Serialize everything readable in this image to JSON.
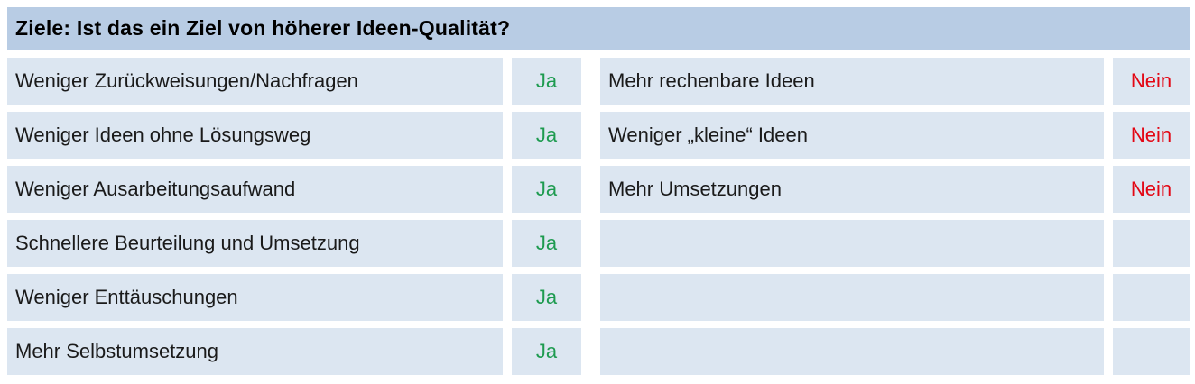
{
  "header": {
    "title": "Ziele: Ist das ein Ziel von höherer Ideen-Qualität?"
  },
  "table": {
    "left_rows": [
      {
        "label": "Weniger Zurückweisungen/Nachfragen",
        "answer": "Ja"
      },
      {
        "label": "Weniger Ideen ohne Lösungsweg",
        "answer": "Ja"
      },
      {
        "label": "Weniger Ausarbeitungsaufwand",
        "answer": "Ja"
      },
      {
        "label": "Schnellere Beurteilung und Umsetzung",
        "answer": "Ja"
      },
      {
        "label": "Weniger Enttäuschungen",
        "answer": "Ja"
      },
      {
        "label": "Mehr Selbstumsetzung",
        "answer": "Ja"
      }
    ],
    "right_rows": [
      {
        "label": "Mehr rechenbare Ideen",
        "answer": "Nein"
      },
      {
        "label": "Weniger „kleine“ Ideen",
        "answer": "Nein"
      },
      {
        "label": "Mehr Umsetzungen",
        "answer": "Nein"
      },
      {
        "label": "",
        "answer": ""
      },
      {
        "label": "",
        "answer": ""
      },
      {
        "label": "",
        "answer": ""
      }
    ]
  },
  "colors": {
    "header_bg": "#b8cce4",
    "row_bg": "#dce6f1",
    "yes": "#1e9b50",
    "no": "#e30613",
    "text": "#1a1a1a"
  }
}
